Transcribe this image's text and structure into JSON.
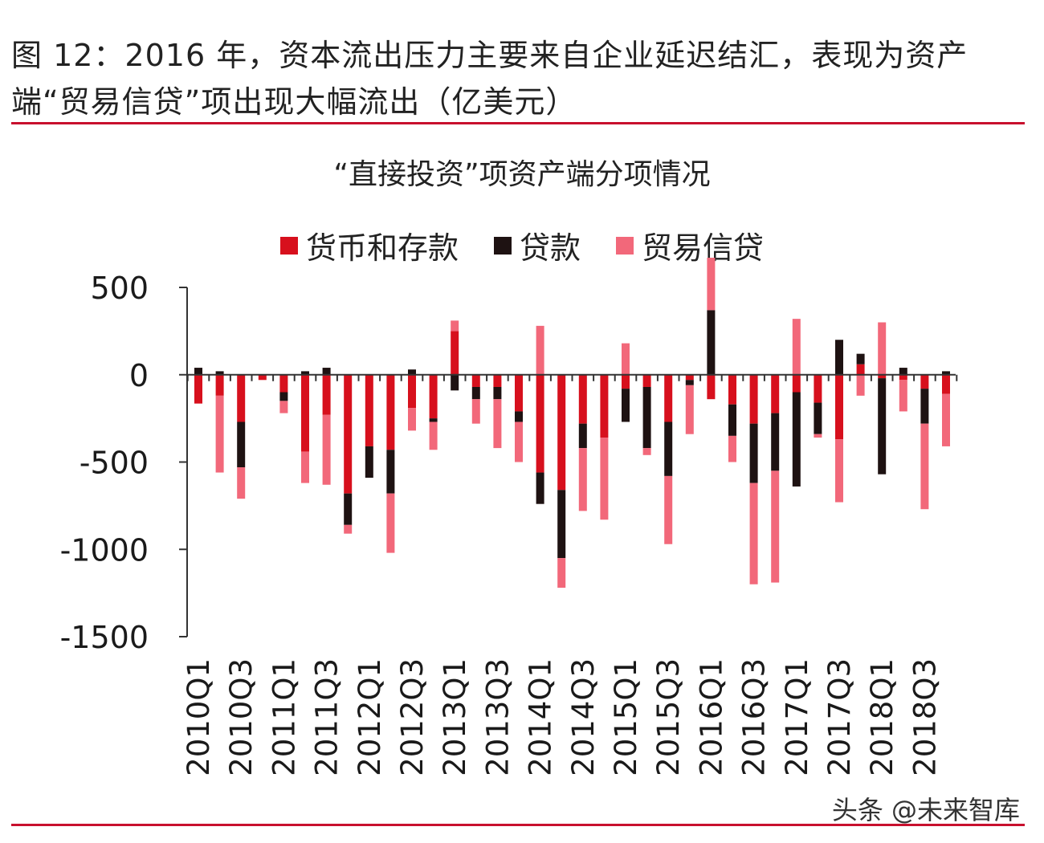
{
  "figure": {
    "title": "图 12：2016 年，资本流出压力主要来自企业延迟结汇，表现为资产端“贸易信贷”项出现大幅流出（亿美元）"
  },
  "watermark": "头条 @未来智库",
  "colors": {
    "deposit": "#d7101d",
    "loan": "#1e1212",
    "trade": "#f2687a",
    "rule": "#c8102e",
    "axis": "#333333"
  },
  "chart_data": {
    "type": "bar",
    "stacked": true,
    "title": "“直接投资”项资产端分项情况",
    "legend_position": "top",
    "ylim": [
      -1500,
      500
    ],
    "yticks": [
      500,
      0,
      -500,
      -1000,
      -1500
    ],
    "grid": false,
    "categories": [
      "2010Q1",
      "2010Q2",
      "2010Q3",
      "2010Q4",
      "2011Q1",
      "2011Q2",
      "2011Q3",
      "2011Q4",
      "2012Q1",
      "2012Q2",
      "2012Q3",
      "2012Q4",
      "2013Q1",
      "2013Q2",
      "2013Q3",
      "2013Q4",
      "2014Q1",
      "2014Q2",
      "2014Q3",
      "2014Q4",
      "2015Q1",
      "2015Q2",
      "2015Q3",
      "2015Q4",
      "2016Q1",
      "2016Q2",
      "2016Q3",
      "2016Q4",
      "2017Q1",
      "2017Q2",
      "2017Q3",
      "2017Q4",
      "2018Q1",
      "2018Q2",
      "2018Q3",
      "2018Q4"
    ],
    "tick_labels": [
      "2010Q1",
      "",
      "2010Q3",
      "",
      "2011Q1",
      "",
      "2011Q3",
      "",
      "2012Q1",
      "",
      "2012Q3",
      "",
      "2013Q1",
      "",
      "2013Q3",
      "",
      "2014Q1",
      "",
      "2014Q3",
      "",
      "2015Q1",
      "",
      "2015Q3",
      "",
      "2016Q1",
      "",
      "2016Q3",
      "",
      "2017Q1",
      "",
      "2017Q3",
      "",
      "2018Q1",
      "",
      "2018Q3",
      ""
    ],
    "series": [
      {
        "name": "货币和存款",
        "key": "deposit",
        "values": [
          -165,
          -120,
          -270,
          -30,
          -100,
          -440,
          -230,
          -680,
          -410,
          -430,
          -190,
          -250,
          250,
          -70,
          -70,
          -210,
          -560,
          -660,
          -280,
          -360,
          -80,
          -70,
          -270,
          -30,
          -140,
          -170,
          -280,
          -220,
          -100,
          -160,
          -370,
          60,
          -20,
          -30,
          -80,
          -110
        ]
      },
      {
        "name": "贷款",
        "key": "loan",
        "values": [
          40,
          20,
          -260,
          0,
          -50,
          20,
          40,
          -180,
          -180,
          -250,
          30,
          -20,
          -90,
          -70,
          -70,
          -60,
          -180,
          -390,
          -140,
          0,
          -190,
          -350,
          -310,
          -30,
          370,
          -180,
          -340,
          -330,
          -540,
          -180,
          200,
          60,
          -550,
          40,
          -200,
          20
        ]
      },
      {
        "name": "贸易信贷",
        "key": "trade",
        "values": [
          0,
          -440,
          -180,
          0,
          -70,
          -180,
          -400,
          -50,
          0,
          -340,
          -130,
          -160,
          60,
          -140,
          -280,
          -230,
          280,
          -170,
          -360,
          -470,
          180,
          -40,
          -390,
          -280,
          300,
          -150,
          -580,
          -640,
          320,
          -20,
          -360,
          -120,
          300,
          -180,
          -490,
          -300
        ]
      }
    ]
  }
}
